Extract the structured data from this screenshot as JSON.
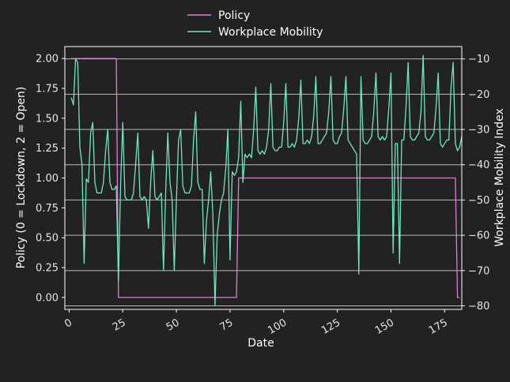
{
  "chart_data": {
    "type": "line",
    "xlabel": "Date",
    "ylabel_left": "Policy (0 = Lockdown, 2 = Open)",
    "ylabel_right": "Workplace Mobility Index",
    "xlim": [
      -2,
      183
    ],
    "ylim_left": [
      -0.1,
      2.1
    ],
    "ylim_right": [
      -81,
      -6.5
    ],
    "xticks": [
      0,
      25,
      50,
      75,
      100,
      125,
      150,
      175
    ],
    "yticks_left": [
      0.0,
      0.25,
      0.5,
      0.75,
      1.0,
      1.25,
      1.5,
      1.75,
      2.0
    ],
    "yticks_right": [
      -80,
      -70,
      -60,
      -50,
      -40,
      -30,
      -20,
      -10
    ],
    "grid": "horizontal lines at right-axis ticks",
    "legend": "above plot, center",
    "colors": {
      "background": "#222222",
      "policy": "#e27ad8",
      "mobility": "#6fe6c2",
      "text": "#ffffff",
      "grid": "#b8b8b8"
    },
    "series": [
      {
        "name": "Policy",
        "axis": "left",
        "x": [
          1,
          21,
          22,
          23,
          78,
          79,
          180,
          181,
          182
        ],
        "y": [
          2,
          2,
          2,
          0,
          0,
          1,
          1,
          0,
          0
        ]
      },
      {
        "name": "Workplace Mobility",
        "axis": "right",
        "x": [
          1,
          2,
          3,
          4,
          5,
          6,
          7,
          8,
          9,
          10,
          11,
          12,
          13,
          14,
          15,
          16,
          17,
          18,
          19,
          20,
          21,
          22,
          23,
          24,
          25,
          26,
          27,
          28,
          29,
          30,
          31,
          32,
          33,
          34,
          35,
          36,
          37,
          38,
          39,
          40,
          41,
          42,
          43,
          44,
          45,
          46,
          47,
          48,
          49,
          50,
          51,
          52,
          53,
          54,
          55,
          56,
          57,
          58,
          59,
          60,
          61,
          62,
          63,
          64,
          65,
          66,
          67,
          68,
          69,
          70,
          71,
          72,
          73,
          74,
          75,
          76,
          77,
          78,
          79,
          80,
          81,
          82,
          83,
          84,
          85,
          86,
          87,
          88,
          89,
          90,
          91,
          92,
          93,
          94,
          95,
          96,
          97,
          98,
          99,
          100,
          101,
          102,
          103,
          104,
          105,
          106,
          107,
          108,
          109,
          110,
          111,
          112,
          113,
          114,
          115,
          116,
          117,
          118,
          119,
          120,
          121,
          122,
          123,
          124,
          125,
          126,
          127,
          128,
          129,
          130,
          131,
          132,
          133,
          134,
          135,
          136,
          137,
          138,
          139,
          140,
          141,
          142,
          143,
          144,
          145,
          146,
          147,
          148,
          149,
          150,
          151,
          152,
          153,
          154,
          155,
          156,
          157,
          158,
          159,
          160,
          161,
          162,
          163,
          164,
          165,
          166,
          167,
          168,
          169,
          170,
          171,
          172,
          173,
          174,
          175,
          176,
          177,
          178,
          179,
          180,
          181,
          182,
          183
        ],
        "y": [
          -21,
          -23,
          -10,
          -11,
          -35,
          -40,
          -68,
          -44,
          -45,
          -31,
          -28,
          -45,
          -48,
          -48,
          -48,
          -45,
          -36,
          -30,
          -45,
          -47,
          -47,
          -46,
          -73,
          -45,
          -28,
          -49,
          -50,
          -50,
          -50,
          -48,
          -40,
          -31,
          -49,
          -50,
          -49,
          -50,
          -58,
          -45,
          -36,
          -49,
          -50,
          -49,
          -48,
          -70,
          -48,
          -31,
          -45,
          -50,
          -70,
          -50,
          -33,
          -30,
          -46,
          -48,
          -48,
          -48,
          -46,
          -33,
          -25,
          -45,
          -47,
          -47,
          -68,
          -56,
          -50,
          -42,
          -54,
          -80,
          -60,
          -54,
          -50,
          -48,
          -41,
          -30,
          -67,
          -42,
          -43,
          -42,
          -38,
          -22,
          -45,
          -37,
          -38,
          -37,
          -38,
          -30,
          -18,
          -36,
          -37,
          -36,
          -37,
          -35,
          -30,
          -17,
          -35,
          -36,
          -36,
          -35,
          -35,
          -28,
          -17,
          -35,
          -35,
          -34,
          -35,
          -33,
          -27,
          -16,
          -34,
          -34,
          -33,
          -34,
          -32,
          -26,
          -15,
          -34,
          -34,
          -33,
          -32,
          -31,
          -25,
          -15,
          -33,
          -34,
          -34,
          -32,
          -31,
          -24,
          -15,
          -33,
          -34,
          -35,
          -36,
          -37,
          -71,
          -15,
          -33,
          -34,
          -34,
          -33,
          -32,
          -25,
          -14,
          -32,
          -33,
          -32,
          -33,
          -32,
          -24,
          -14,
          -65,
          -34,
          -34,
          -68,
          -33,
          -33,
          -24,
          -11,
          -32,
          -33,
          -33,
          -32,
          -31,
          -25,
          -9,
          -32,
          -33,
          -33,
          -32,
          -31,
          -24,
          -14,
          -34,
          -35,
          -34,
          -33,
          -33,
          -18,
          -11,
          -34,
          -36,
          -35,
          -32
        ]
      }
    ]
  }
}
